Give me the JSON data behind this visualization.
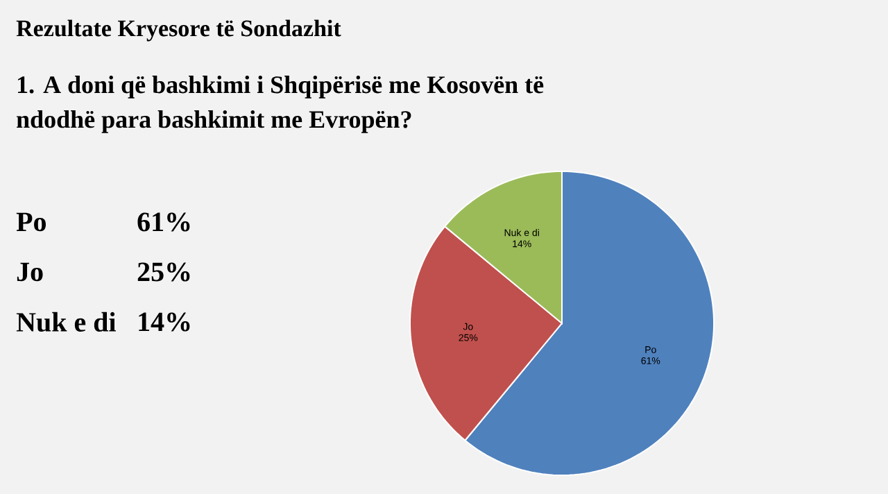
{
  "chart_data": {
    "type": "pie",
    "title": "Rezultate Kryesore të Sondazhit",
    "subtitle": "1. A doni që bashkimi i Shqipërisë me Kosovën të ndodhë para bashkimit me Evropën?",
    "categories": [
      "Po",
      "Jo",
      "Nuk e di"
    ],
    "values": [
      61,
      25,
      14
    ],
    "value_labels": [
      "61%",
      "25%",
      "14%"
    ],
    "colors": [
      "#4f81bd",
      "#c0504d",
      "#9bbb59"
    ]
  }
}
